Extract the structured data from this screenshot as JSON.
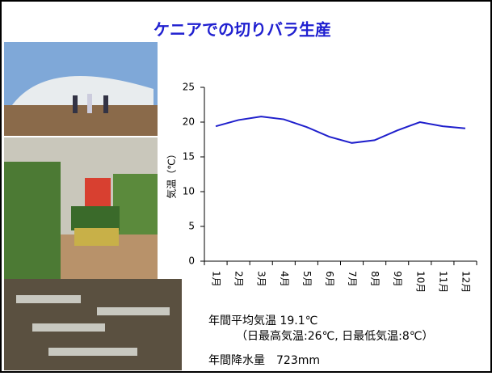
{
  "chart_data": {
    "type": "line",
    "title": "ケニアでの切りバラ生産",
    "y_label": "気温（℃）",
    "categories": [
      "1月",
      "2月",
      "3月",
      "4月",
      "5月",
      "6月",
      "7月",
      "8月",
      "9月",
      "10月",
      "11月",
      "12月"
    ],
    "values": [
      19.4,
      20.3,
      20.8,
      20.4,
      19.3,
      17.9,
      17.0,
      17.4,
      18.8,
      20.0,
      19.4,
      19.1
    ],
    "color": "#1f1fcc",
    "ylim": [
      0,
      25
    ],
    "yticks": [
      0,
      5,
      10,
      15,
      20,
      25
    ],
    "annotations": [
      "年間平均気温 19.1℃",
      "（日最高気温:26℃, 日最低気温:8℃）",
      "年間降水量　723mm"
    ]
  }
}
